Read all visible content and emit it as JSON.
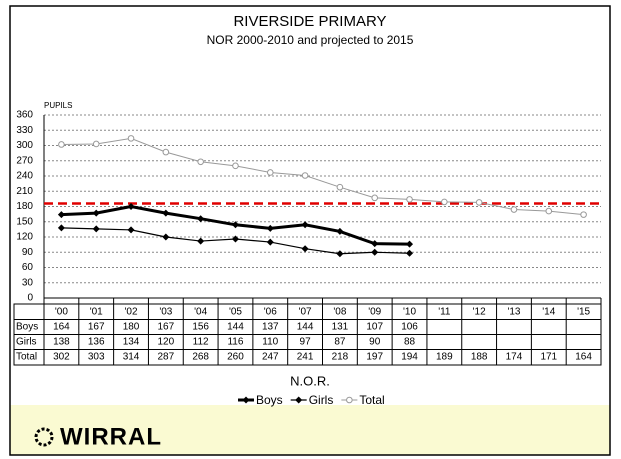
{
  "chart_data": {
    "type": "line",
    "title": "RIVERSIDE PRIMARY",
    "subtitle": "NOR 2000-2010 and projected to 2015",
    "y_label": "PUPILS",
    "x_label": "N.O.R.",
    "logo": "WIRRAL",
    "categories": [
      "'00",
      "'01",
      "'02",
      "'03",
      "'04",
      "'05",
      "'06",
      "'07",
      "'08",
      "'09",
      "'10",
      "'11",
      "'12",
      "'13",
      "'14",
      "'15"
    ],
    "series": [
      {
        "name": "Boys",
        "color": "#000000",
        "values": [
          164,
          167,
          180,
          167,
          156,
          144,
          137,
          144,
          131,
          107,
          106,
          null,
          null,
          null,
          null,
          null
        ]
      },
      {
        "name": "Girls",
        "color": "#000000",
        "values": [
          138,
          136,
          134,
          120,
          112,
          116,
          110,
          97,
          87,
          90,
          88,
          null,
          null,
          null,
          null,
          null
        ]
      },
      {
        "name": "Total",
        "color": "#999999",
        "values": [
          302,
          303,
          314,
          287,
          268,
          260,
          247,
          241,
          218,
          197,
          194,
          189,
          188,
          174,
          171,
          164
        ]
      }
    ],
    "reference_lines": [
      {
        "value": 186,
        "color": "#e00000"
      }
    ],
    "ylim": [
      0,
      360
    ],
    "yticks": [
      0,
      30,
      60,
      90,
      120,
      150,
      180,
      210,
      240,
      270,
      300,
      330,
      360
    ],
    "grid": true
  }
}
